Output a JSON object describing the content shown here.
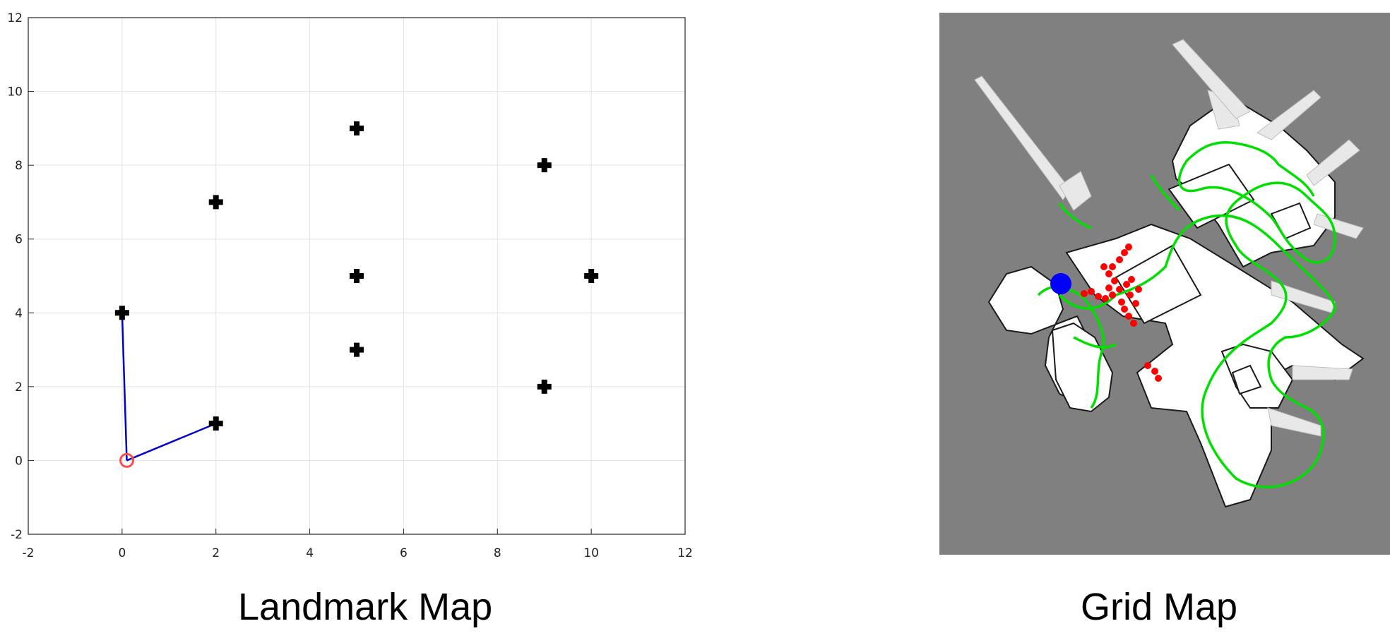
{
  "captions": {
    "left": "Landmark Map",
    "right": "Grid Map"
  },
  "chart_data": [
    {
      "type": "scatter",
      "title": "",
      "xlabel": "",
      "ylabel": "",
      "xlim": [
        -2,
        12
      ],
      "ylim": [
        -2,
        12
      ],
      "xticks": [
        -2,
        0,
        2,
        4,
        6,
        8,
        10,
        12
      ],
      "yticks": [
        -2,
        0,
        2,
        4,
        6,
        8,
        10,
        12
      ],
      "grid": true,
      "landmarks": [
        {
          "x": 0,
          "y": 4
        },
        {
          "x": 2,
          "y": 1
        },
        {
          "x": 2,
          "y": 7
        },
        {
          "x": 5,
          "y": 9
        },
        {
          "x": 5,
          "y": 5
        },
        {
          "x": 5,
          "y": 3
        },
        {
          "x": 9,
          "y": 8
        },
        {
          "x": 9,
          "y": 2
        },
        {
          "x": 10,
          "y": 5
        }
      ],
      "robot": {
        "x": 0.1,
        "y": 0
      },
      "observations": [
        {
          "x": 0,
          "y": 4
        },
        {
          "x": 2,
          "y": 1
        }
      ],
      "colors": {
        "landmark": "#000000",
        "robot": "#ff4d4d",
        "observation": "#0000cc",
        "grid": "#e3e3e3"
      }
    },
    {
      "type": "occupancy-grid",
      "colors": {
        "unknown": "#808080",
        "free": "#ffffff",
        "path": "#00e000",
        "particles": "#ff0000",
        "robot": "#0000ff"
      }
    }
  ]
}
